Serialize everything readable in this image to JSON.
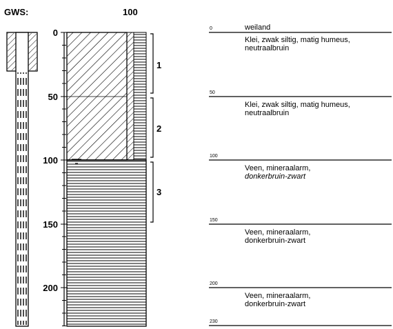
{
  "header": {
    "gws_label": "GWS:",
    "gws_value": "100"
  },
  "scale": {
    "ticks": [
      "0",
      "50",
      "100",
      "150",
      "200"
    ]
  },
  "samples": [
    "1",
    "2",
    "3"
  ],
  "profile": {
    "top_label": "weiland",
    "depth_marks": [
      "0",
      "50",
      "100",
      "150",
      "200",
      "230"
    ],
    "layers": [
      {
        "line1": "Klei, zwak siltig, matig humeus,",
        "line2": "neutraalbruin"
      },
      {
        "line1": "Klei, zwak siltig, matig humeus,",
        "line2": "neutraalbruin"
      },
      {
        "line1": "Veen, mineraalarm,",
        "line2": "donkerbruin-zwart"
      },
      {
        "line1": "Veen, mineraalarm,",
        "line2": "donkerbruin-zwart"
      },
      {
        "line1": "Veen, mineraalarm,",
        "line2": "donkerbruin-zwart"
      }
    ]
  }
}
